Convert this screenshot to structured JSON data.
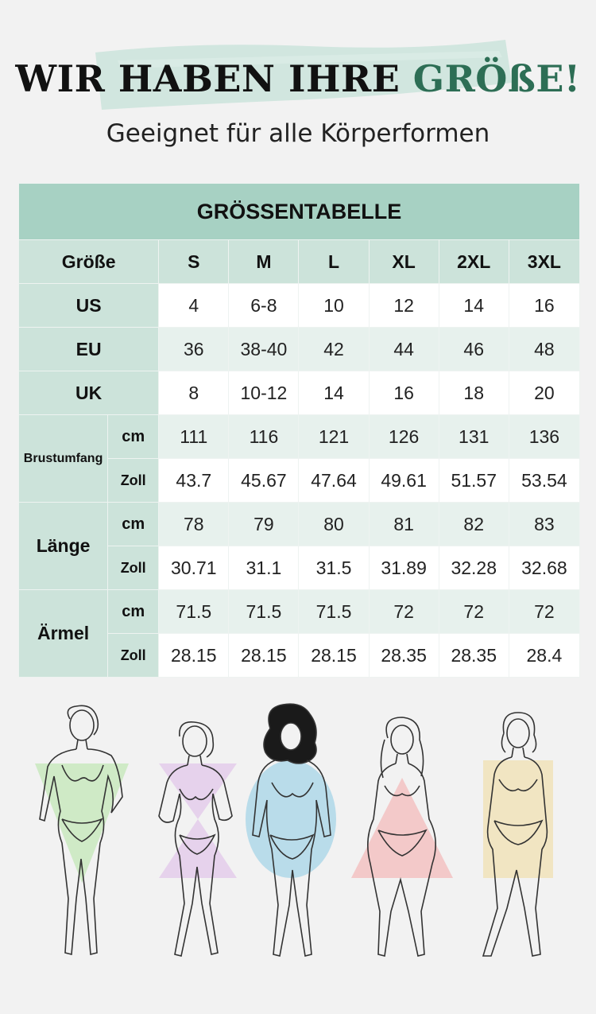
{
  "headline": {
    "part1": "WIR HABEN IHRE ",
    "accent": "GRÖßE!"
  },
  "subtitle": "Geeignet für alle Körperformen",
  "table": {
    "title": "GRÖSSENTABELLE",
    "size_label": "Größe",
    "sizes": [
      "S",
      "M",
      "L",
      "XL",
      "2XL",
      "3XL"
    ],
    "us": {
      "label": "US",
      "values": [
        "4",
        "6-8",
        "10",
        "12",
        "14",
        "16"
      ]
    },
    "eu": {
      "label": "EU",
      "values": [
        "36",
        "38-40",
        "42",
        "44",
        "46",
        "48"
      ]
    },
    "uk": {
      "label": "UK",
      "values": [
        "8",
        "10-12",
        "14",
        "16",
        "18",
        "20"
      ]
    },
    "unit_cm": "cm",
    "unit_zoll": "Zoll",
    "brustumfang": {
      "label": "Brustumfang",
      "cm": [
        "111",
        "116",
        "121",
        "126",
        "131",
        "136"
      ],
      "zoll": [
        "43.7",
        "45.67",
        "47.64",
        "49.61",
        "51.57",
        "53.54"
      ]
    },
    "laenge": {
      "label": "Länge",
      "cm": [
        "78",
        "79",
        "80",
        "81",
        "82",
        "83"
      ],
      "zoll": [
        "30.71",
        "31.1",
        "31.5",
        "31.89",
        "32.28",
        "32.68"
      ]
    },
    "aermel": {
      "label": "Ärmel",
      "cm": [
        "71.5",
        "71.5",
        "71.5",
        "72",
        "72",
        "72"
      ],
      "zoll": [
        "28.15",
        "28.15",
        "28.15",
        "28.35",
        "28.35",
        "28.4"
      ]
    }
  },
  "body_shapes": [
    {
      "shape": "inverted-triangle",
      "color": "#cfeac6"
    },
    {
      "shape": "hourglass",
      "color": "#e6d2ec"
    },
    {
      "shape": "oval",
      "color": "#b9dcea"
    },
    {
      "shape": "triangle",
      "color": "#f3c9c9"
    },
    {
      "shape": "rectangle",
      "color": "#f1e5c2"
    }
  ],
  "colors": {
    "accent": "#2d6e55",
    "header_bg": "#a7d1c3",
    "label_bg": "#cce3da",
    "stripe_bg": "#e7f1ed"
  }
}
